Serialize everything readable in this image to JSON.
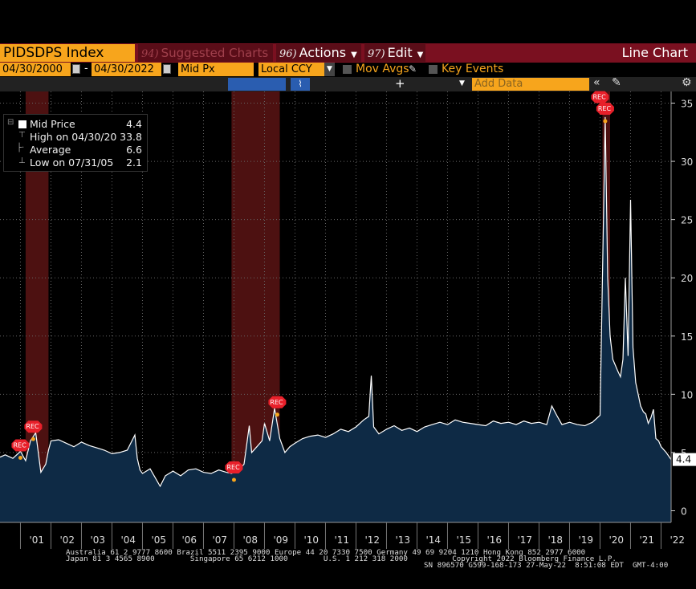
{
  "toolbar": {
    "ticker": "PIDSDPS Index",
    "suggested_num": "94)",
    "suggested_label": "Suggested Charts",
    "actions_num": "96)",
    "actions_label": "Actions",
    "edit_num": "97)",
    "edit_label": "Edit",
    "chart_type": "Line Chart"
  },
  "params": {
    "start_date": "04/30/2000",
    "end_date": "04/30/2022",
    "date_sep": "-",
    "field": "Mid Px",
    "currency": "Local CCY",
    "mov_avgs": "Mov Avgs",
    "key_events": "Key Events",
    "add_data_placeholder": "Add Data",
    "plus": "+"
  },
  "legend": [
    {
      "label": "Mid Price",
      "value": "4.4"
    },
    {
      "label": "High on 04/30/20",
      "value": "33.8"
    },
    {
      "label": "Average",
      "value": "6.6"
    },
    {
      "label": "Low on 07/31/05",
      "value": "2.1"
    }
  ],
  "last_value_tag": "4.4",
  "event_label": "REC",
  "footer": {
    "line1": "Australia 61 2 9777 8600 Brazil 5511 2395 9000 Europe 44 20 7330 7500 Germany 49 69 9204 1210 Hong Kong 852 2977 6000",
    "line2": "Japan 81 3 4565 8900        Singapore 65 6212 1000        U.S. 1 212 318 2000          Copyright 2022 Bloomberg Finance L.P.",
    "line3": "SN 896570 G599-168-173 27-May-22  8:51:08 EDT  GMT-4:00"
  },
  "colors": {
    "accent": "#f7a51c",
    "toolbar_red": "#7a1020",
    "area_fill": "#0e2a45",
    "line": "#ffffff",
    "recession": "#5a1414"
  },
  "chart_data": {
    "type": "area",
    "title": "",
    "xlabel": "",
    "ylabel": "",
    "x_range": [
      "2000-04-30",
      "2022-04-30"
    ],
    "ylim": [
      -1,
      36
    ],
    "y_ticks": [
      0,
      5,
      10,
      15,
      20,
      25,
      30,
      35
    ],
    "x_tick_labels": [
      "'01",
      "'02",
      "'03",
      "'04",
      "'05",
      "'06",
      "'07",
      "'08",
      "'09",
      "'10",
      "'11",
      "'12",
      "'13",
      "'14",
      "'15",
      "'16",
      "'17",
      "'18",
      "'19",
      "'20",
      "'21",
      "'22"
    ],
    "grid": true,
    "legend_position": "top-left",
    "recession_shading": [
      {
        "start": 2001.17,
        "end": 2001.92
      },
      {
        "start": 2007.92,
        "end": 2009.5
      },
      {
        "start": 2020.08,
        "end": 2020.33
      }
    ],
    "events": [
      {
        "x": 2001.42,
        "y": 6.7,
        "label": "REC"
      },
      {
        "x": 2001.0,
        "y": 5.1,
        "label": "REC"
      },
      {
        "x": 2008.0,
        "y": 3.2,
        "label": "REC"
      },
      {
        "x": 2009.42,
        "y": 8.8,
        "label": "REC"
      },
      {
        "x": 2020.0,
        "y": 35.0,
        "label": "REC"
      },
      {
        "x": 2020.17,
        "y": 34.0,
        "label": "REC"
      }
    ],
    "series": [
      {
        "name": "Mid Price",
        "x": [
          2000.33,
          2000.5,
          2000.75,
          2001.0,
          2001.17,
          2001.33,
          2001.5,
          2001.67,
          2001.83,
          2001.92,
          2002.0,
          2002.25,
          2002.5,
          2002.75,
          2003.0,
          2003.25,
          2003.5,
          2003.75,
          2004.0,
          2004.25,
          2004.5,
          2004.75,
          2004.83,
          2004.92,
          2005.0,
          2005.25,
          2005.58,
          2005.75,
          2006.0,
          2006.25,
          2006.5,
          2006.75,
          2007.0,
          2007.25,
          2007.5,
          2007.75,
          2007.92,
          2008.17,
          2008.33,
          2008.5,
          2008.58,
          2008.75,
          2008.92,
          2009.0,
          2009.17,
          2009.33,
          2009.5,
          2009.67,
          2009.83,
          2010.0,
          2010.25,
          2010.5,
          2010.75,
          2011.0,
          2011.25,
          2011.5,
          2011.75,
          2012.0,
          2012.25,
          2012.42,
          2012.5,
          2012.58,
          2012.75,
          2013.0,
          2013.25,
          2013.5,
          2013.75,
          2014.0,
          2014.25,
          2014.5,
          2014.75,
          2015.0,
          2015.25,
          2015.5,
          2015.75,
          2016.0,
          2016.25,
          2016.5,
          2016.75,
          2017.0,
          2017.25,
          2017.5,
          2017.75,
          2018.0,
          2018.25,
          2018.42,
          2018.58,
          2018.75,
          2019.0,
          2019.25,
          2019.5,
          2019.75,
          2020.0,
          2020.17,
          2020.25,
          2020.33,
          2020.42,
          2020.5,
          2020.58,
          2020.67,
          2020.75,
          2020.83,
          2020.92,
          2021.0,
          2021.08,
          2021.17,
          2021.25,
          2021.33,
          2021.42,
          2021.5,
          2021.58,
          2021.67,
          2021.75,
          2021.83,
          2021.92,
          2022.0,
          2022.17,
          2022.33
        ],
        "y": [
          4.6,
          4.8,
          4.5,
          5.1,
          4.3,
          6.0,
          6.7,
          3.3,
          4.0,
          5.2,
          6.0,
          6.1,
          5.8,
          5.5,
          5.9,
          5.6,
          5.4,
          5.2,
          4.9,
          5.0,
          5.2,
          6.5,
          4.5,
          3.5,
          3.2,
          3.6,
          2.1,
          3.0,
          3.4,
          3.0,
          3.5,
          3.6,
          3.3,
          3.2,
          3.5,
          3.3,
          3.2,
          3.5,
          4.0,
          7.3,
          5.0,
          5.5,
          6.0,
          7.5,
          6.0,
          8.8,
          6.2,
          5.0,
          5.5,
          5.8,
          6.2,
          6.4,
          6.5,
          6.3,
          6.6,
          7.0,
          6.8,
          7.2,
          7.8,
          8.1,
          11.6,
          7.2,
          6.6,
          7.0,
          7.3,
          6.9,
          7.1,
          6.8,
          7.2,
          7.4,
          7.6,
          7.4,
          7.8,
          7.6,
          7.5,
          7.4,
          7.3,
          7.7,
          7.5,
          7.6,
          7.4,
          7.7,
          7.5,
          7.6,
          7.4,
          9.0,
          8.2,
          7.4,
          7.6,
          7.4,
          7.3,
          7.6,
          8.2,
          33.8,
          20.0,
          15.0,
          13.0,
          12.5,
          12.0,
          11.5,
          13.0,
          20.0,
          13.3,
          26.7,
          14.0,
          11.0,
          10.0,
          9.0,
          8.5,
          8.3,
          7.5,
          8.0,
          8.7,
          6.2,
          6.0,
          5.5,
          5.0,
          4.4
        ]
      }
    ]
  }
}
